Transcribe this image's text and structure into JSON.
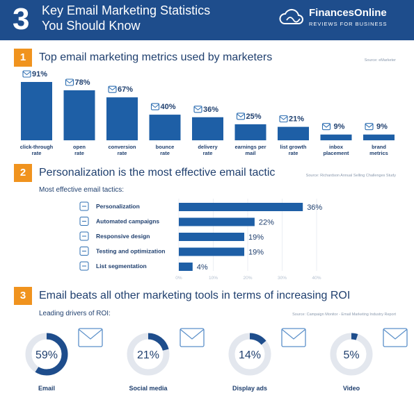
{
  "header": {
    "number": "3",
    "title_line1": "Key Email Marketing Statistics",
    "title_line2": "You Should Know",
    "brand_name": "FinancesOnline",
    "brand_tagline": "REVIEWS FOR BUSINESS"
  },
  "colors": {
    "header_bg": "#1e4d8c",
    "accent": "#f0931e",
    "bar": "#1e5fa6",
    "ring_track": "#e3e7ee",
    "ring_fill": "#1e4d8c"
  },
  "section1": {
    "number": "1",
    "title": "Top email marketing metrics used by marketers",
    "source": "Source: eMarketer"
  },
  "section2": {
    "number": "2",
    "title": "Personalization is the most effective email tactic",
    "source": "Source: Richardson Annual Selling Challenges Study",
    "subtitle": "Most effective email tactics:"
  },
  "section3": {
    "number": "3",
    "title": "Email beats all other marketing tools in terms of increasing ROI",
    "source": "Source: Campaign Monitor - Email Marketing Industry Report",
    "subtitle": "Leading drivers of ROI:"
  },
  "chart_data": [
    {
      "type": "bar",
      "categories": [
        "click-through rate",
        "open rate",
        "conversion rate",
        "bounce rate",
        "delivery rate",
        "earnings per mail",
        "list growth rate",
        "inbox placement",
        "brand metrics"
      ],
      "value_labels": [
        "91%",
        "78%",
        "67%",
        "40%",
        "36%",
        "25%",
        "21%",
        "9%",
        "9%"
      ],
      "values": [
        91,
        78,
        67,
        40,
        36,
        25,
        21,
        9,
        9
      ],
      "icons": [
        "cursor-click-icon",
        "envelope-icon",
        "growth-chart-icon",
        "bounce-arrow-icon",
        "send-envelope-icon",
        "money-bag-icon",
        "list-icon",
        "inbox-icon",
        "badge-icon"
      ]
    },
    {
      "type": "bar",
      "orientation": "horizontal",
      "categories": [
        "Personalization",
        "Automated campaigns",
        "Responsive design",
        "Testing and optimization",
        "List segmentation"
      ],
      "value_labels": [
        "36%",
        "22%",
        "19%",
        "19%",
        "4%"
      ],
      "values": [
        36,
        22,
        19,
        19,
        4
      ],
      "tick_labels": [
        "0%",
        "10%",
        "20%",
        "30%",
        "40%"
      ],
      "xlim": [
        0,
        40
      ],
      "icons": [
        "person-gear-icon",
        "sliders-icon",
        "devices-icon",
        "checklist-icon",
        "hierarchy-icon"
      ]
    },
    {
      "type": "pie",
      "style": "donut",
      "categories": [
        "Email",
        "Social media",
        "Display ads",
        "Video"
      ],
      "value_labels": [
        "59%",
        "21%",
        "14%",
        "5%"
      ],
      "values": [
        59,
        21,
        14,
        5
      ],
      "icons": [
        "envelope-icon",
        "social-network-icon",
        "ad-blocks-icon",
        "film-strip-icon"
      ]
    }
  ]
}
